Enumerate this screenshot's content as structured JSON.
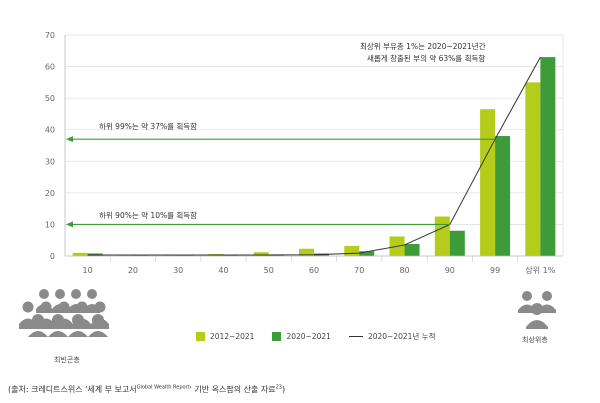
{
  "chart_data": {
    "type": "bar",
    "categories": [
      "10",
      "20",
      "30",
      "40",
      "50",
      "60",
      "70",
      "80",
      "90",
      "99",
      "상위 1%"
    ],
    "series": [
      {
        "name": "2012~2021",
        "color": "#b5cc1a",
        "values": [
          1,
          0.3,
          0.3,
          0.6,
          1.2,
          2.3,
          3.2,
          6.2,
          12.5,
          46.5,
          55
        ]
      },
      {
        "name": "2020~2021",
        "color": "#3d9b3a",
        "values": [
          0.8,
          0.2,
          0.2,
          0.3,
          0.5,
          0.8,
          1.5,
          3.8,
          8,
          38,
          63
        ]
      },
      {
        "name": "2020~2021년 누적",
        "type": "line",
        "color": "#333333",
        "values": [
          0.3,
          0.3,
          0.3,
          0.3,
          0.3,
          0.4,
          0.9,
          3.5,
          10,
          37,
          63
        ]
      }
    ],
    "ylim": [
      0,
      70
    ],
    "yticks": [
      0,
      10,
      20,
      30,
      40,
      50,
      60,
      70
    ],
    "annotations": {
      "top_line1": "최상위 부유층 1%는 2020~2021년간",
      "top_line2": "새롭게 창출된 부의 약 63%를 획득함",
      "bottom99": "하위 99%는 약 37%를 획득함",
      "bottom90": "하위 90%는 약 10%를 획득함"
    },
    "arrow_levels": [
      37,
      10
    ]
  },
  "labels": {
    "poorest": "최빈곤층",
    "richest": "최상위층"
  },
  "source": {
    "prefix": "(출처: 크레디트스위스 '세계 부 보고서",
    "sup": "Global Wealth Report",
    "suffix": "' 기반 옥스팜의 산출 자료",
    "footnote": "23",
    "close": ")"
  }
}
